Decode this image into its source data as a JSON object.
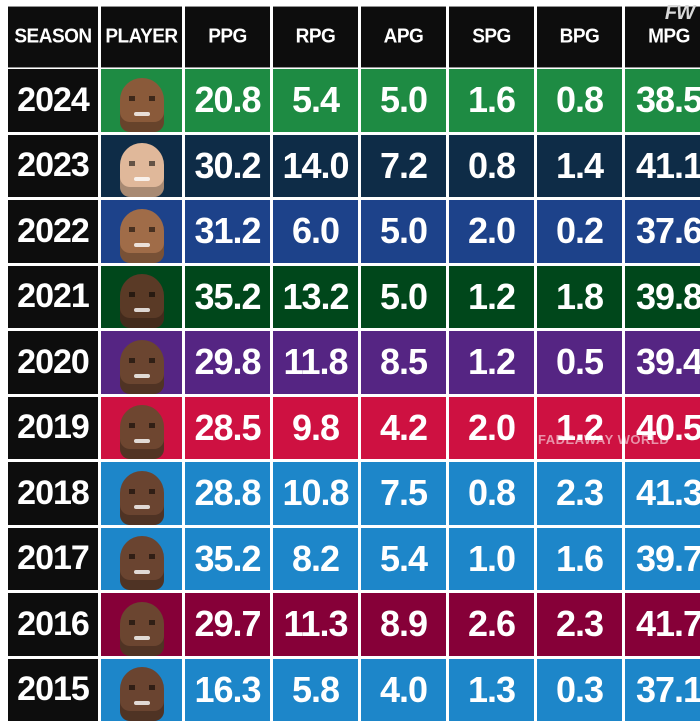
{
  "logo": "FW",
  "watermark": "FADEAWAY WORLD",
  "headers": [
    "SEASON",
    "PLAYER",
    "PPG",
    "RPG",
    "APG",
    "SPG",
    "BPG",
    "MPG"
  ],
  "rows": [
    {
      "season": "2024",
      "color": "#1e8b43",
      "skin": "#8a5a3a",
      "stats": [
        "20.8",
        "5.4",
        "5.0",
        "1.6",
        "0.8",
        "38.5"
      ]
    },
    {
      "season": "2023",
      "color": "#0e2c47",
      "skin": "#e0b89a",
      "stats": [
        "30.2",
        "14.0",
        "7.2",
        "0.8",
        "1.4",
        "41.1"
      ]
    },
    {
      "season": "2022",
      "color": "#1d428a",
      "skin": "#a06c48",
      "stats": [
        "31.2",
        "6.0",
        "5.0",
        "2.0",
        "0.2",
        "37.6"
      ]
    },
    {
      "season": "2021",
      "color": "#00471b",
      "skin": "#5a3a26",
      "stats": [
        "35.2",
        "13.2",
        "5.0",
        "1.2",
        "1.8",
        "39.8"
      ]
    },
    {
      "season": "2020",
      "color": "#552583",
      "skin": "#6b4530",
      "stats": [
        "29.8",
        "11.8",
        "8.5",
        "1.2",
        "0.5",
        "39.4"
      ]
    },
    {
      "season": "2019",
      "color": "#ce1141",
      "skin": "#6e4630",
      "stats": [
        "28.5",
        "9.8",
        "4.2",
        "2.0",
        "1.2",
        "40.5"
      ]
    },
    {
      "season": "2018",
      "color": "#1d86c9",
      "skin": "#6a4430",
      "stats": [
        "28.8",
        "10.8",
        "7.5",
        "0.8",
        "2.3",
        "41.3"
      ]
    },
    {
      "season": "2017",
      "color": "#1d86c9",
      "skin": "#6a4430",
      "stats": [
        "35.2",
        "8.2",
        "5.4",
        "1.0",
        "1.6",
        "39.7"
      ]
    },
    {
      "season": "2016",
      "color": "#860038",
      "skin": "#6b4530",
      "stats": [
        "29.7",
        "11.3",
        "8.9",
        "2.6",
        "2.3",
        "41.7"
      ]
    },
    {
      "season": "2015",
      "color": "#1d86c9",
      "skin": "#6a4430",
      "stats": [
        "16.3",
        "5.8",
        "4.0",
        "1.3",
        "0.3",
        "37.1"
      ]
    }
  ]
}
